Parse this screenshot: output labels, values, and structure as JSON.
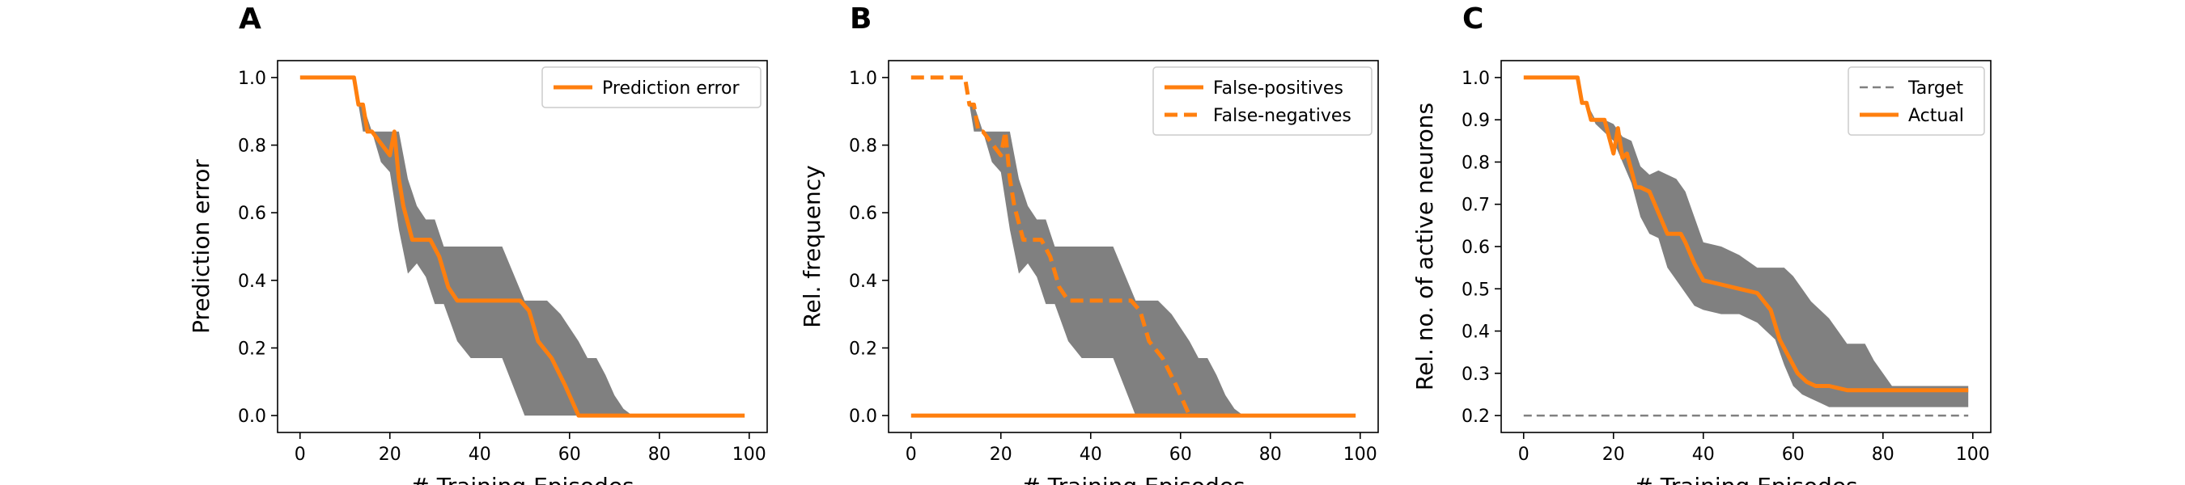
{
  "figure": {
    "panel_letters": [
      "A",
      "B",
      "C"
    ]
  },
  "colors": {
    "orange": "#ff7f0e",
    "band": "#808080",
    "target": "#808080",
    "frame": "#000000"
  },
  "chart_data": [
    {
      "type": "line",
      "panel": "A",
      "xlabel": "# Training Episodes",
      "ylabel": "Prediction error",
      "xlim": [
        -5,
        104
      ],
      "ylim": [
        -0.05,
        1.05
      ],
      "xticks": [
        0,
        20,
        40,
        60,
        80,
        100
      ],
      "yticks": [
        0.0,
        0.2,
        0.4,
        0.6,
        0.8,
        1.0
      ],
      "ytick_labels": [
        "0.0",
        "0.2",
        "0.4",
        "0.6",
        "0.8",
        "1.0"
      ],
      "legend": {
        "placement": "upper right"
      },
      "series": [
        {
          "name": "Prediction error",
          "style": "solid",
          "x": [
            0,
            12,
            13,
            14,
            15,
            16,
            20,
            21,
            22,
            23,
            25,
            26,
            29,
            31,
            33,
            35,
            40,
            45,
            49,
            51,
            53,
            56,
            59,
            61,
            62,
            99
          ],
          "y": [
            1.0,
            1.0,
            0.92,
            0.92,
            0.84,
            0.84,
            0.77,
            0.84,
            0.7,
            0.62,
            0.52,
            0.52,
            0.52,
            0.47,
            0.38,
            0.34,
            0.34,
            0.34,
            0.34,
            0.31,
            0.22,
            0.17,
            0.09,
            0.03,
            0.0,
            0.0
          ]
        }
      ],
      "band": {
        "x": [
          0,
          12,
          13,
          14,
          16,
          18,
          20,
          22,
          24,
          26,
          28,
          30,
          32,
          35,
          38,
          40,
          45,
          50,
          52,
          55,
          58,
          60,
          62,
          64,
          66,
          68,
          70,
          72,
          74,
          76,
          99
        ],
        "lower": [
          1.0,
          1.0,
          0.92,
          0.84,
          0.84,
          0.75,
          0.72,
          0.55,
          0.42,
          0.45,
          0.41,
          0.33,
          0.33,
          0.22,
          0.17,
          0.17,
          0.17,
          0.0,
          0.0,
          0.0,
          0.0,
          0.0,
          0.0,
          0.0,
          0.0,
          0.0,
          0.0,
          0.0,
          0.0,
          0.0,
          0.0
        ],
        "upper": [
          1.0,
          1.0,
          0.92,
          0.92,
          0.84,
          0.84,
          0.84,
          0.84,
          0.7,
          0.62,
          0.58,
          0.58,
          0.5,
          0.5,
          0.5,
          0.5,
          0.5,
          0.34,
          0.34,
          0.34,
          0.3,
          0.26,
          0.22,
          0.17,
          0.17,
          0.12,
          0.06,
          0.02,
          0.0,
          0.0,
          0.0
        ]
      }
    },
    {
      "type": "line",
      "panel": "B",
      "xlabel": "# Training Episodes",
      "ylabel": "Rel. frequency",
      "xlim": [
        -5,
        104
      ],
      "ylim": [
        -0.05,
        1.05
      ],
      "xticks": [
        0,
        20,
        40,
        60,
        80,
        100
      ],
      "yticks": [
        0.0,
        0.2,
        0.4,
        0.6,
        0.8,
        1.0
      ],
      "ytick_labels": [
        "0.0",
        "0.2",
        "0.4",
        "0.6",
        "0.8",
        "1.0"
      ],
      "legend": {
        "placement": "upper right"
      },
      "series": [
        {
          "name": "False-positives",
          "style": "solid",
          "x": [
            0,
            99
          ],
          "y": [
            0.0,
            0.0
          ]
        },
        {
          "name": "False-negatives",
          "style": "dashed",
          "x": [
            0,
            12,
            13,
            14,
            15,
            16,
            20,
            21,
            22,
            23,
            25,
            26,
            29,
            31,
            33,
            35,
            40,
            45,
            49,
            51,
            53,
            56,
            59,
            61,
            62
          ],
          "y": [
            1.0,
            1.0,
            0.92,
            0.92,
            0.84,
            0.84,
            0.77,
            0.84,
            0.7,
            0.62,
            0.52,
            0.52,
            0.52,
            0.47,
            0.38,
            0.34,
            0.34,
            0.34,
            0.34,
            0.31,
            0.22,
            0.17,
            0.09,
            0.03,
            0.0
          ]
        }
      ],
      "band": {
        "x": [
          0,
          12,
          13,
          14,
          16,
          18,
          20,
          22,
          24,
          26,
          28,
          30,
          32,
          35,
          38,
          40,
          45,
          50,
          52,
          55,
          58,
          60,
          62,
          64,
          66,
          68,
          70,
          72,
          74,
          76,
          99
        ],
        "lower": [
          1.0,
          1.0,
          0.92,
          0.84,
          0.84,
          0.75,
          0.72,
          0.55,
          0.42,
          0.45,
          0.41,
          0.33,
          0.33,
          0.22,
          0.17,
          0.17,
          0.17,
          0.0,
          0.0,
          0.0,
          0.0,
          0.0,
          0.0,
          0.0,
          0.0,
          0.0,
          0.0,
          0.0,
          0.0,
          0.0,
          0.0
        ],
        "upper": [
          1.0,
          1.0,
          0.92,
          0.92,
          0.84,
          0.84,
          0.84,
          0.84,
          0.7,
          0.62,
          0.58,
          0.58,
          0.5,
          0.5,
          0.5,
          0.5,
          0.5,
          0.34,
          0.34,
          0.34,
          0.3,
          0.26,
          0.22,
          0.17,
          0.17,
          0.12,
          0.06,
          0.02,
          0.0,
          0.0,
          0.0
        ]
      }
    },
    {
      "type": "line",
      "panel": "C",
      "xlabel": "# Training Episodes",
      "ylabel": "Rel. no. of active neurons",
      "xlim": [
        -5,
        104
      ],
      "ylim": [
        0.16,
        1.04
      ],
      "xticks": [
        0,
        20,
        40,
        60,
        80,
        100
      ],
      "yticks": [
        0.2,
        0.3,
        0.4,
        0.5,
        0.6,
        0.7,
        0.8,
        0.9,
        1.0
      ],
      "ytick_labels": [
        "0.2",
        "0.3",
        "0.4",
        "0.5",
        "0.6",
        "0.7",
        "0.8",
        "0.9",
        "1.0"
      ],
      "legend": {
        "placement": "upper right"
      },
      "series": [
        {
          "name": "Target",
          "style": "dashed",
          "color_key": "target",
          "x": [
            0,
            99
          ],
          "y": [
            0.2,
            0.2
          ]
        },
        {
          "name": "Actual",
          "style": "solid",
          "x": [
            0,
            12,
            13,
            14,
            15,
            16,
            18,
            19,
            20,
            21,
            22,
            23,
            24,
            25,
            26,
            28,
            30,
            32,
            35,
            36,
            38,
            40,
            44,
            48,
            52,
            55,
            57,
            59,
            61,
            63,
            65,
            68,
            72,
            76,
            80,
            90,
            99
          ],
          "y": [
            1.0,
            1.0,
            0.94,
            0.94,
            0.9,
            0.9,
            0.9,
            0.86,
            0.82,
            0.88,
            0.81,
            0.82,
            0.78,
            0.74,
            0.74,
            0.73,
            0.68,
            0.63,
            0.63,
            0.61,
            0.56,
            0.52,
            0.51,
            0.5,
            0.49,
            0.45,
            0.38,
            0.34,
            0.3,
            0.28,
            0.27,
            0.27,
            0.26,
            0.26,
            0.26,
            0.26,
            0.26
          ]
        }
      ],
      "band": {
        "x": [
          0,
          12,
          14,
          16,
          18,
          20,
          22,
          24,
          26,
          28,
          30,
          32,
          34,
          36,
          38,
          40,
          44,
          48,
          52,
          56,
          58,
          60,
          62,
          64,
          66,
          68,
          70,
          72,
          74,
          76,
          78,
          80,
          82,
          90,
          99
        ],
        "lower": [
          1.0,
          1.0,
          0.94,
          0.89,
          0.87,
          0.85,
          0.8,
          0.75,
          0.67,
          0.63,
          0.62,
          0.55,
          0.52,
          0.49,
          0.46,
          0.45,
          0.44,
          0.44,
          0.42,
          0.38,
          0.32,
          0.27,
          0.25,
          0.24,
          0.23,
          0.22,
          0.22,
          0.22,
          0.22,
          0.22,
          0.22,
          0.22,
          0.22,
          0.22,
          0.22
        ],
        "upper": [
          1.0,
          1.0,
          0.94,
          0.9,
          0.9,
          0.89,
          0.86,
          0.85,
          0.79,
          0.77,
          0.78,
          0.77,
          0.76,
          0.73,
          0.67,
          0.61,
          0.6,
          0.58,
          0.55,
          0.55,
          0.55,
          0.53,
          0.5,
          0.47,
          0.45,
          0.43,
          0.4,
          0.37,
          0.37,
          0.37,
          0.33,
          0.3,
          0.27,
          0.27,
          0.27
        ]
      }
    }
  ]
}
